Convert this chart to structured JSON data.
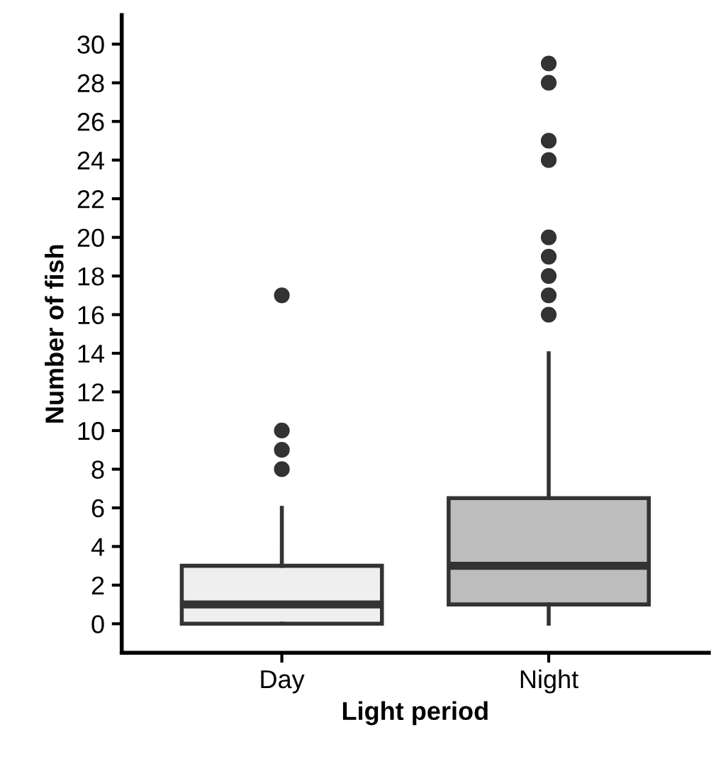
{
  "chart_data": {
    "type": "box",
    "xlabel": "Light period",
    "ylabel": "Number of fish",
    "categories": [
      "Day",
      "Night"
    ],
    "colors": [
      "#efefef",
      "#bdbdbd"
    ],
    "boxes": [
      {
        "low": 0,
        "q1": 0,
        "median": 1,
        "q3": 3,
        "high": 6,
        "outliers": [
          8,
          9,
          10,
          17
        ]
      },
      {
        "low": 0,
        "q1": 1,
        "median": 3,
        "q3": 6.5,
        "high": 14,
        "outliers": [
          16,
          17,
          18,
          19,
          20,
          24,
          25,
          28,
          29
        ]
      }
    ],
    "ylim": [
      -1.5,
      31.5
    ],
    "yticks": [
      0,
      2,
      4,
      6,
      8,
      10,
      12,
      14,
      16,
      18,
      20,
      22,
      24,
      26,
      28,
      30
    ],
    "grid": false
  }
}
